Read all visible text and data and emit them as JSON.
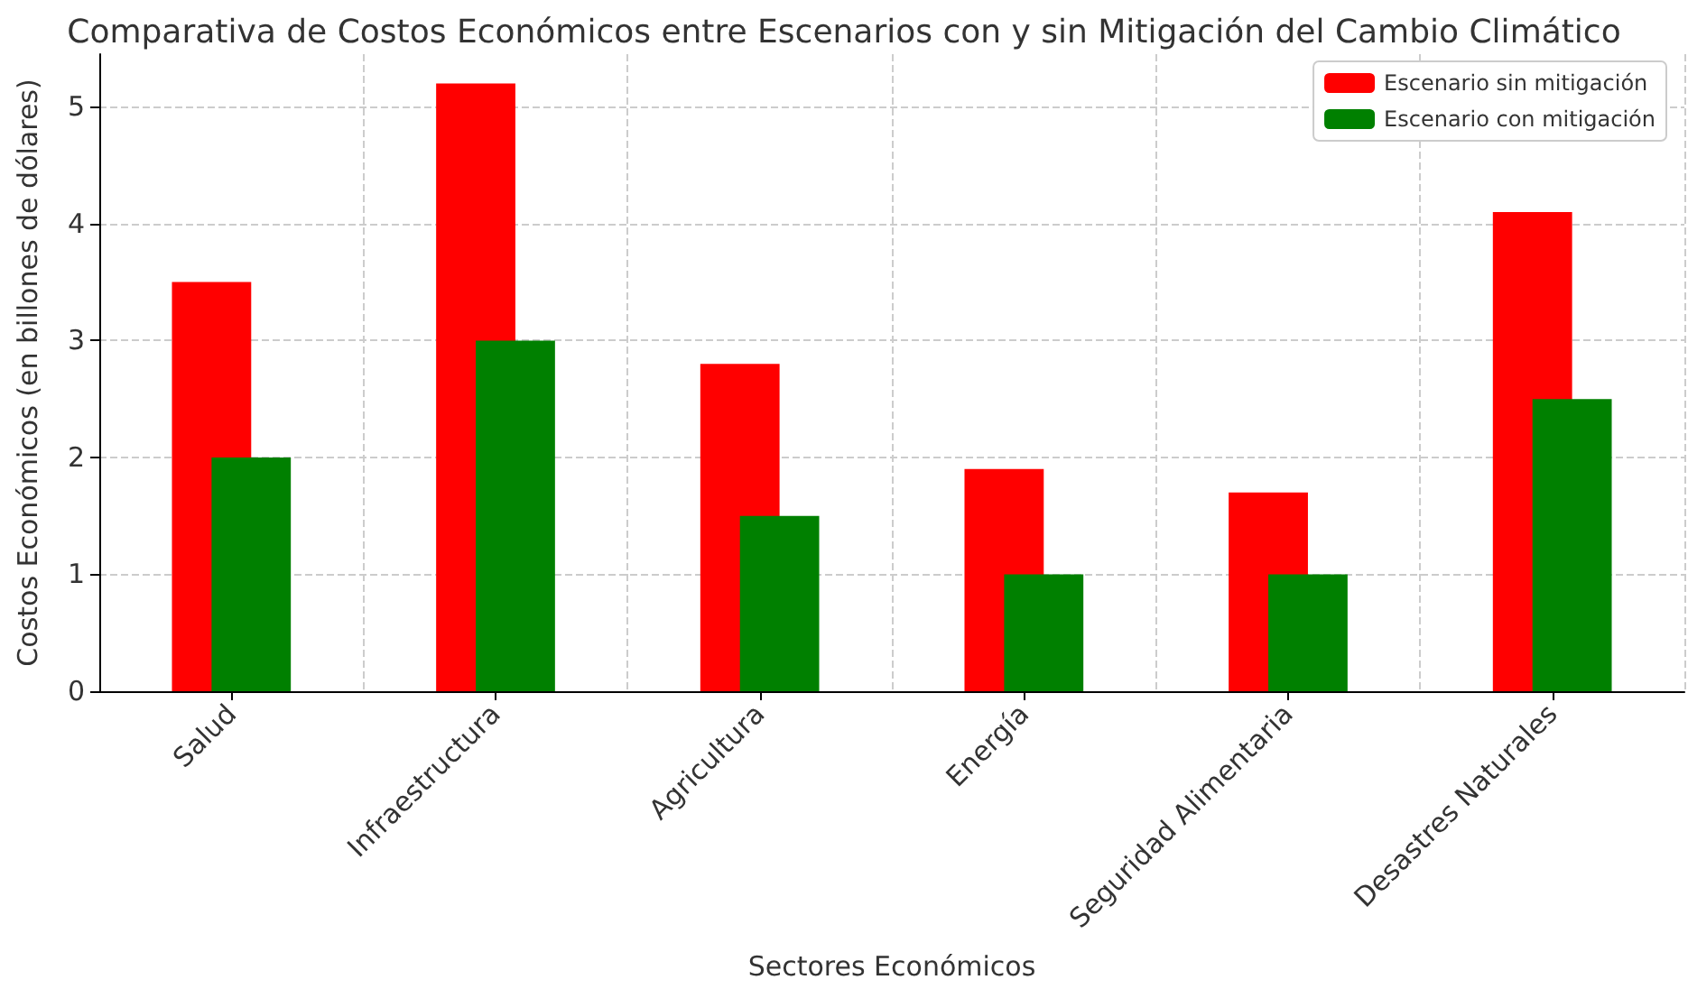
{
  "chart_data": {
    "type": "bar",
    "title": "Comparativa de Costos Económicos entre Escenarios con y sin Mitigación del Cambio Climático",
    "xlabel": "Sectores Económicos",
    "ylabel": "Costos Económicos (en billones de dólares)",
    "categories": [
      "Salud",
      "Infraestructura",
      "Agricultura",
      "Energía",
      "Seguridad Alimentaria",
      "Desastres Naturales"
    ],
    "series": [
      {
        "name": "Escenario sin mitigación",
        "color": "#ff0000",
        "values": [
          3.5,
          5.2,
          2.8,
          1.9,
          1.7,
          4.1
        ]
      },
      {
        "name": "Escenario con mitigación",
        "color": "#008000",
        "values": [
          2.0,
          3.0,
          1.5,
          1.0,
          1.0,
          2.5
        ]
      }
    ],
    "ylim": [
      0,
      5.45
    ],
    "yticks": [
      0,
      1,
      2,
      3,
      4,
      5
    ],
    "grid": true,
    "legend": "top right"
  }
}
